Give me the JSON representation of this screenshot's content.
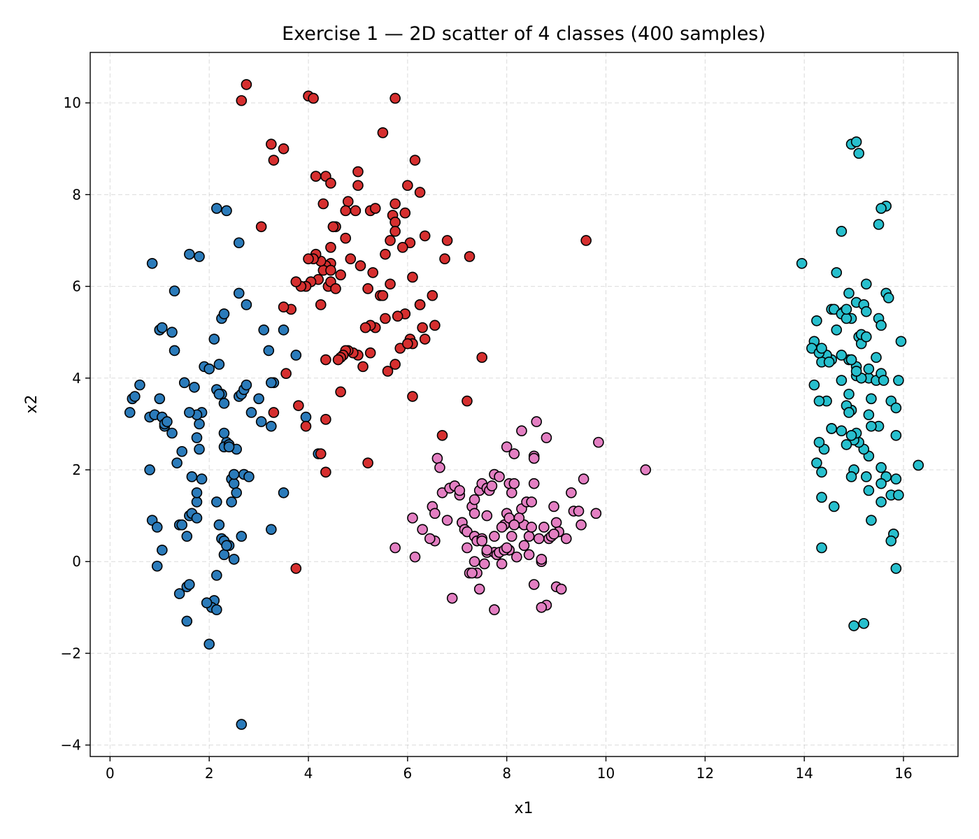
{
  "chart_data": {
    "type": "scatter",
    "title": "Exercise 1 — 2D scatter of 4 classes (400 samples)",
    "xlabel": "x1",
    "ylabel": "x2",
    "xlim": [
      -0.4,
      17.1
    ],
    "ylim": [
      -4.25,
      11.1
    ],
    "xticks": [
      0,
      2,
      4,
      6,
      8,
      10,
      12,
      14,
      16
    ],
    "yticks": [
      -4,
      -2,
      0,
      2,
      4,
      6,
      8,
      10
    ],
    "xtick_labels": [
      "0",
      "2",
      "4",
      "6",
      "8",
      "10",
      "12",
      "14",
      "16"
    ],
    "ytick_labels": [
      "−4",
      "−2",
      "0",
      "2",
      "4",
      "6",
      "8",
      "10"
    ],
    "grid": true,
    "series": [
      {
        "color": "#2b7bba",
        "x": [
          0.4,
          0.45,
          0.5,
          0.6,
          0.85,
          0.8,
          0.9,
          1.0,
          1.05,
          1.1,
          1.0,
          1.1,
          1.15,
          0.8,
          0.85,
          0.95,
          1.05,
          1.25,
          1.3,
          1.35,
          1.45,
          1.4,
          1.5,
          1.6,
          1.7,
          1.75,
          1.8,
          1.85,
          1.75,
          1.8,
          1.75,
          1.6,
          1.65,
          1.85,
          1.75,
          1.9,
          2.0,
          2.1,
          2.2,
          2.15,
          2.25,
          2.3,
          2.2,
          2.35,
          2.3,
          2.4,
          2.45,
          2.5,
          2.45,
          2.55,
          2.6,
          2.65,
          2.7,
          2.75,
          2.6,
          2.7,
          2.8,
          2.85,
          3.0,
          3.1,
          3.2,
          3.25,
          3.3,
          3.5,
          3.75,
          3.95,
          4.2,
          2.15,
          2.35,
          1.6,
          1.8,
          1.3,
          1.25,
          1.0,
          2.6,
          2.75,
          2.25,
          2.3,
          3.05,
          3.25,
          2.15,
          2.2,
          2.25,
          2.3,
          2.4,
          1.45,
          1.55,
          1.65,
          1.75,
          2.15,
          2.1,
          2.05,
          2.15,
          2.3,
          2.35,
          2.5,
          2.65,
          1.4,
          1.55,
          2.0,
          1.95,
          2.65,
          3.25,
          3.5,
          1.55,
          1.6,
          0.95,
          1.05,
          2.3,
          2.4,
          2.55,
          2.5
        ],
        "y": [
          3.25,
          3.55,
          3.6,
          3.85,
          6.5,
          3.15,
          3.2,
          3.55,
          3.15,
          2.95,
          5.05,
          3.0,
          3.05,
          2.0,
          0.9,
          0.75,
          0.25,
          5.0,
          4.6,
          2.15,
          2.4,
          0.8,
          3.9,
          1.0,
          3.8,
          1.3,
          3.0,
          3.25,
          3.2,
          2.45,
          2.7,
          3.25,
          1.85,
          1.8,
          1.5,
          4.25,
          4.2,
          4.85,
          4.3,
          3.75,
          3.65,
          3.45,
          3.65,
          2.6,
          2.5,
          2.55,
          1.8,
          1.7,
          1.3,
          2.45,
          3.6,
          3.65,
          3.75,
          3.85,
          5.85,
          1.9,
          1.85,
          3.25,
          3.55,
          5.05,
          4.6,
          2.95,
          3.9,
          5.05,
          4.5,
          3.15,
          2.35,
          7.7,
          7.65,
          6.7,
          6.65,
          5.9,
          2.8,
          5.05,
          6.95,
          5.6,
          5.3,
          5.4,
          3.05,
          0.7,
          1.3,
          0.8,
          0.5,
          0.15,
          0.35,
          0.8,
          0.55,
          1.05,
          0.95,
          -0.3,
          -0.85,
          -1.0,
          -1.05,
          0.45,
          0.35,
          0.05,
          0.55,
          -0.7,
          -1.3,
          -1.8,
          -0.9,
          -3.55,
          3.9,
          1.5,
          -0.55,
          -0.5,
          -0.1,
          5.1,
          2.8,
          2.5,
          1.5,
          1.9
        ]
      },
      {
        "color": "#d62f2f",
        "x": [
          2.75,
          2.65,
          3.25,
          3.5,
          3.3,
          4.0,
          4.1,
          3.05,
          4.15,
          4.35,
          4.45,
          4.3,
          4.5,
          4.8,
          4.75,
          4.95,
          5.0,
          5.25,
          5.35,
          5.5,
          5.75,
          5.75,
          5.7,
          5.75,
          6.0,
          5.95,
          6.15,
          6.25,
          6.25,
          6.35,
          6.8,
          7.25,
          6.75,
          6.05,
          5.9,
          5.75,
          5.65,
          5.55,
          5.65,
          5.95,
          6.3,
          6.25,
          6.05,
          6.1,
          6.5,
          5.45,
          5.35,
          5.25,
          5.15,
          5.1,
          5.0,
          4.9,
          4.8,
          4.75,
          4.7,
          4.65,
          4.6,
          4.55,
          4.5,
          4.45,
          4.4,
          4.35,
          4.3,
          4.25,
          4.2,
          4.15,
          4.1,
          4.05,
          4.0,
          3.95,
          3.85,
          3.75,
          3.65,
          3.5,
          3.55,
          4.25,
          4.35,
          4.45,
          4.55,
          4.65,
          4.75,
          4.85,
          5.05,
          5.2,
          5.25,
          5.5,
          5.6,
          5.75,
          5.85,
          6.1,
          6.35,
          7.2,
          7.5,
          4.45,
          4.65,
          3.95,
          3.3,
          3.8,
          4.35,
          5.2,
          3.75,
          9.6,
          6.7,
          6.55,
          4.35,
          4.25,
          4.45,
          5.3,
          5.55,
          5.8,
          6.0,
          6.1,
          5.0,
          4.15
        ],
        "y": [
          10.4,
          10.05,
          9.1,
          9.0,
          8.75,
          10.15,
          10.1,
          7.3,
          8.4,
          8.4,
          8.25,
          7.8,
          7.3,
          7.85,
          7.65,
          7.65,
          8.5,
          7.65,
          7.7,
          9.35,
          10.1,
          7.8,
          7.55,
          7.4,
          8.2,
          7.6,
          8.75,
          8.05,
          5.6,
          7.1,
          7.0,
          6.65,
          6.6,
          6.95,
          6.85,
          7.2,
          7.0,
          6.7,
          6.05,
          5.4,
          5.1,
          5.6,
          4.85,
          4.75,
          5.8,
          5.8,
          5.1,
          5.15,
          5.1,
          4.25,
          4.5,
          4.55,
          4.6,
          4.6,
          4.5,
          4.45,
          4.4,
          7.3,
          7.3,
          6.5,
          6.0,
          6.45,
          6.35,
          6.55,
          6.15,
          6.7,
          6.6,
          6.1,
          6.6,
          6.0,
          6.0,
          6.1,
          5.5,
          5.55,
          4.1,
          5.6,
          4.4,
          6.1,
          5.95,
          6.25,
          7.05,
          6.6,
          6.45,
          5.95,
          4.55,
          5.8,
          4.15,
          4.3,
          4.65,
          6.2,
          4.85,
          3.5,
          4.45,
          6.85,
          3.7,
          2.95,
          3.25,
          3.4,
          3.1,
          2.15,
          -0.15,
          7.0,
          2.75,
          5.15,
          1.95,
          2.35,
          6.35,
          6.3,
          5.3,
          5.35,
          4.75,
          3.6,
          8.2,
          8.4
        ]
      },
      {
        "color": "#e37fc2",
        "x": [
          5.75,
          6.15,
          6.1,
          6.3,
          6.5,
          6.55,
          6.6,
          6.65,
          6.7,
          6.85,
          6.95,
          7.05,
          7.1,
          7.1,
          7.15,
          7.2,
          7.25,
          7.3,
          7.35,
          7.35,
          7.4,
          7.45,
          7.5,
          7.5,
          7.55,
          7.6,
          7.6,
          7.65,
          7.7,
          7.75,
          7.75,
          7.8,
          7.85,
          7.9,
          7.95,
          8.0,
          8.0,
          8.05,
          8.05,
          8.1,
          8.15,
          8.2,
          8.25,
          8.3,
          8.35,
          8.35,
          8.4,
          8.45,
          8.5,
          8.5,
          8.55,
          8.55,
          8.6,
          8.65,
          8.7,
          8.75,
          8.8,
          8.85,
          8.9,
          8.95,
          9.0,
          9.05,
          9.3,
          9.35,
          9.45,
          9.5,
          9.55,
          9.8,
          9.85,
          10.8,
          8.15,
          8.3,
          8.55,
          8.25,
          8.05,
          7.75,
          7.85,
          7.95,
          8.2,
          8.45,
          8.7,
          9.0,
          9.2,
          9.1,
          8.8,
          7.4,
          7.45,
          6.9,
          7.3,
          7.75,
          8.7,
          8.55,
          8.95,
          7.6,
          8.0,
          8.1,
          8.15,
          7.9,
          7.5,
          7.35,
          7.2,
          6.8,
          6.55,
          6.45,
          7.6,
          7.35,
          7.05
        ],
        "y": [
          0.3,
          0.1,
          0.95,
          0.7,
          1.2,
          1.05,
          2.25,
          2.05,
          1.5,
          1.6,
          1.65,
          1.45,
          0.85,
          0.85,
          0.7,
          0.65,
          -0.25,
          1.2,
          1.05,
          0.55,
          0.45,
          1.55,
          1.7,
          0.5,
          -0.05,
          1.6,
          0.2,
          1.55,
          1.65,
          1.9,
          0.2,
          0.15,
          1.85,
          -0.05,
          0.8,
          1.05,
          2.5,
          1.7,
          0.25,
          1.5,
          1.7,
          0.9,
          0.85,
          1.15,
          0.8,
          0.35,
          1.3,
          0.55,
          1.3,
          0.75,
          1.7,
          2.3,
          3.05,
          0.5,
          0.0,
          0.75,
          2.7,
          0.5,
          0.55,
          1.2,
          0.85,
          0.65,
          1.5,
          1.1,
          1.1,
          0.8,
          1.8,
          1.05,
          2.6,
          2.0,
          2.35,
          2.85,
          2.25,
          0.95,
          0.95,
          0.55,
          0.2,
          0.25,
          0.1,
          0.15,
          0.05,
          -0.55,
          0.5,
          -0.6,
          -0.95,
          -0.25,
          -0.6,
          -0.8,
          -0.25,
          -1.05,
          -1.0,
          -0.5,
          0.6,
          0.25,
          0.3,
          0.55,
          0.8,
          0.75,
          0.45,
          0.0,
          0.3,
          0.9,
          0.45,
          0.5,
          1.0,
          1.35,
          1.55
        ]
      },
      {
        "color": "#27bfcd",
        "x": [
          14.95,
          15.05,
          15.1,
          15.65,
          15.55,
          15.5,
          14.75,
          13.95,
          14.65,
          14.9,
          15.25,
          15.65,
          15.7,
          14.55,
          14.65,
          14.8,
          14.95,
          15.05,
          15.2,
          15.25,
          15.5,
          15.55,
          15.95,
          15.1,
          15.15,
          14.9,
          14.75,
          14.55,
          14.45,
          14.35,
          14.2,
          14.25,
          14.15,
          14.3,
          14.35,
          14.6,
          14.75,
          14.85,
          14.95,
          15.05,
          15.15,
          15.3,
          15.45,
          15.55,
          15.6,
          15.75,
          15.85,
          15.9,
          15.85,
          15.75,
          15.5,
          15.35,
          15.3,
          15.2,
          15.1,
          15.0,
          14.85,
          14.75,
          14.55,
          14.4,
          14.3,
          14.25,
          14.35,
          14.45,
          14.2,
          14.3,
          14.75,
          14.9,
          15.05,
          15.15,
          15.3,
          15.35,
          15.55,
          15.65,
          15.85,
          15.9,
          16.3,
          15.25,
          15.3,
          15.55,
          15.8,
          15.75,
          15.85,
          15.35,
          14.6,
          14.35,
          15.0,
          15.2,
          14.55,
          15.0,
          14.95,
          14.85,
          15.05,
          14.95,
          14.35,
          14.95,
          15.55,
          15.05,
          15.25,
          15.3,
          15.45,
          14.85,
          14.5,
          14.95,
          14.9
        ],
        "y": [
          9.1,
          9.15,
          8.9,
          7.75,
          7.7,
          7.35,
          7.2,
          6.5,
          6.3,
          5.85,
          6.05,
          5.85,
          5.75,
          5.5,
          5.05,
          5.45,
          5.3,
          5.65,
          5.6,
          5.45,
          5.3,
          5.15,
          4.8,
          4.9,
          4.75,
          4.4,
          4.5,
          4.4,
          4.5,
          4.35,
          4.8,
          5.25,
          4.65,
          4.55,
          4.65,
          5.5,
          5.4,
          5.3,
          4.4,
          4.25,
          4.95,
          4.0,
          3.95,
          4.1,
          3.95,
          3.5,
          3.35,
          3.95,
          2.75,
          1.45,
          2.95,
          2.95,
          2.3,
          2.45,
          2.6,
          2.65,
          2.55,
          2.85,
          2.9,
          2.45,
          2.6,
          2.15,
          1.4,
          3.5,
          3.85,
          3.5,
          3.95,
          3.65,
          4.05,
          4.0,
          4.2,
          3.55,
          2.05,
          1.85,
          1.8,
          1.45,
          2.1,
          1.85,
          1.55,
          1.3,
          0.6,
          0.45,
          -0.15,
          0.9,
          1.2,
          0.3,
          -1.4,
          -1.35,
          2.9,
          2.0,
          3.3,
          3.4,
          2.8,
          2.75,
          1.95,
          1.85,
          1.7,
          4.15,
          4.9,
          3.2,
          4.45,
          5.5,
          4.35,
          4.4,
          3.25
        ]
      }
    ]
  }
}
